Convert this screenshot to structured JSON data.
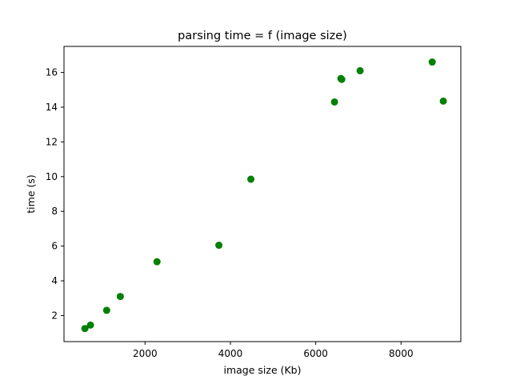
{
  "chart_data": {
    "type": "scatter",
    "title": "parsing time = f (image size)",
    "xlabel": "image size (Kb)",
    "ylabel": "time (s)",
    "xlim": [
      100,
      9400
    ],
    "ylim": [
      0.5,
      17.5
    ],
    "x_ticks": [
      2000,
      4000,
      6000,
      8000
    ],
    "x_tick_labels": [
      "2000",
      "4000",
      "6000",
      "8000"
    ],
    "y_ticks": [
      2,
      4,
      6,
      8,
      10,
      12,
      14,
      16
    ],
    "y_tick_labels": [
      "2",
      "4",
      "6",
      "8",
      "10",
      "12",
      "14",
      "16"
    ],
    "grid": false,
    "marker_color": "#008000",
    "x": [
      590,
      720,
      1100,
      1420,
      2280,
      3730,
      4480,
      6440,
      6590,
      6610,
      7040,
      8730,
      8990
    ],
    "y": [
      1.25,
      1.45,
      2.3,
      3.1,
      5.1,
      6.05,
      9.85,
      14.3,
      15.65,
      15.6,
      16.1,
      16.6,
      14.35
    ]
  }
}
